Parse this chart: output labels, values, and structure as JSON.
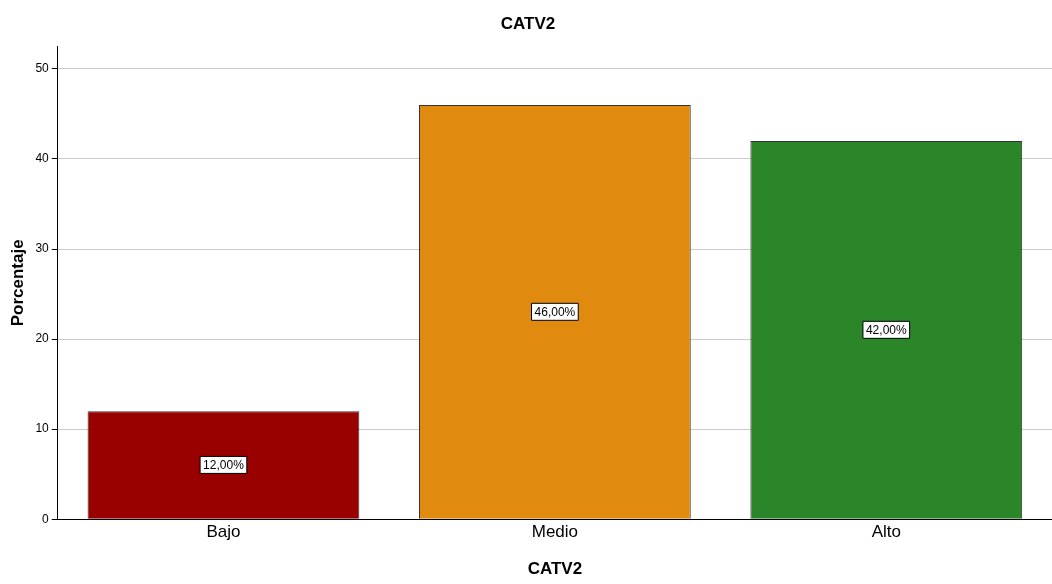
{
  "chart_data": {
    "type": "bar",
    "title": "CATV2",
    "xlabel": "CATV2",
    "ylabel": "Porcentaje",
    "categories": [
      "Bajo",
      "Medio",
      "Alto"
    ],
    "values": [
      12,
      46,
      42
    ],
    "colors": [
      "#990000",
      "#e08a10",
      "#2a8629"
    ],
    "value_labels": [
      "12,00%",
      "46,00%",
      "42,00%"
    ],
    "ylim": [
      0,
      52.5
    ],
    "yticks": [
      0,
      10,
      20,
      30,
      40,
      50
    ],
    "grid": "y",
    "legend": false
  }
}
